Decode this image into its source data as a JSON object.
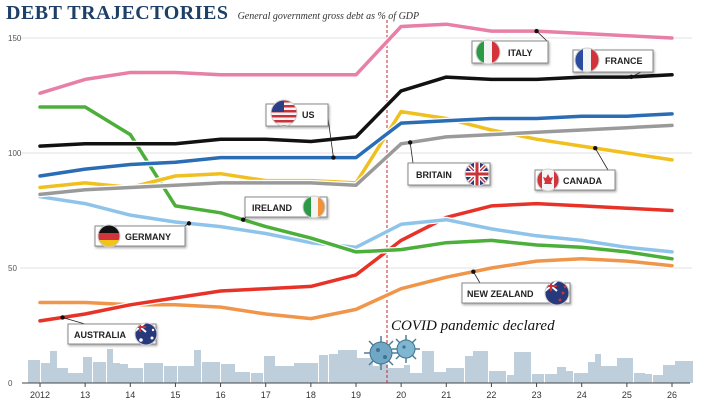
{
  "chart_data": {
    "type": "line",
    "title": "DEBT TRAJECTORIES",
    "subtitle": "General government gross debt as % of GDP",
    "x_labels": [
      "2012",
      "13",
      "14",
      "15",
      "16",
      "17",
      "18",
      "19",
      "20",
      "21",
      "22",
      "23",
      "24",
      "25",
      "26"
    ],
    "x": [
      2012,
      2013,
      2014,
      2015,
      2016,
      2017,
      2018,
      2019,
      2020,
      2021,
      2022,
      2023,
      2024,
      2025,
      2026
    ],
    "y_ticks": [
      0,
      50,
      100,
      150
    ],
    "ylim": [
      0,
      160
    ],
    "annotation": "COVID pandemic declared",
    "series": [
      {
        "name": "ITALY",
        "color": "#e87fa6",
        "values": [
          126,
          132,
          135,
          135,
          134,
          134,
          134,
          134,
          155,
          156,
          153,
          153,
          152,
          151,
          150
        ]
      },
      {
        "name": "FRANCE",
        "color": "#111111",
        "values": [
          103,
          104,
          104,
          104,
          106,
          106,
          105,
          107,
          127,
          133,
          132,
          132,
          133,
          133,
          134
        ]
      },
      {
        "name": "US",
        "color": "#2a6db5",
        "values": [
          90,
          93,
          95,
          96,
          98,
          98,
          98,
          98,
          113,
          114,
          115,
          115,
          116,
          116,
          117
        ]
      },
      {
        "name": "BRITAIN",
        "color": "#9a9a9a",
        "values": [
          82,
          84,
          85,
          86,
          87,
          87,
          87,
          86,
          104,
          107,
          108,
          109,
          110,
          111,
          112
        ]
      },
      {
        "name": "CANADA",
        "color": "#f0c020",
        "values": [
          85,
          87,
          85,
          90,
          91,
          88,
          88,
          87,
          118,
          115,
          110,
          106,
          103,
          100,
          97
        ]
      },
      {
        "name": "IRELAND",
        "color": "#4caf3a",
        "values": [
          120,
          120,
          108,
          77,
          74,
          68,
          63,
          57,
          58,
          61,
          62,
          60,
          59,
          57,
          54
        ]
      },
      {
        "name": "GERMANY",
        "color": "#8fc4ea",
        "values": [
          81,
          78,
          73,
          70,
          68,
          65,
          61,
          59,
          69,
          71,
          67,
          64,
          62,
          59,
          57
        ]
      },
      {
        "name": "AUSTRALIA",
        "color": "#e83228",
        "values": [
          27,
          30,
          34,
          37,
          40,
          41,
          42,
          47,
          62,
          72,
          77,
          78,
          77,
          76,
          75
        ]
      },
      {
        "name": "NEW ZEALAND",
        "color": "#f0964a",
        "values": [
          35,
          35,
          34,
          34,
          33,
          30,
          28,
          32,
          41,
          46,
          50,
          53,
          54,
          53,
          51
        ]
      }
    ]
  },
  "labels": {
    "italy": "ITALY",
    "france": "FRANCE",
    "us": "US",
    "britain": "BRITAIN",
    "canada": "CANADA",
    "ireland": "IRELAND",
    "germany": "GERMANY",
    "australia": "AUSTRALIA",
    "new_zealand": "NEW ZEALAND"
  },
  "flags": {
    "italy": "italy-flag-icon",
    "france": "france-flag-icon",
    "us": "us-flag-icon",
    "britain": "uk-flag-icon",
    "canada": "canada-flag-icon",
    "ireland": "ireland-flag-icon",
    "germany": "germany-flag-icon",
    "australia": "australia-flag-icon",
    "new_zealand": "new-zealand-flag-icon",
    "virus": "coronavirus-icon"
  }
}
